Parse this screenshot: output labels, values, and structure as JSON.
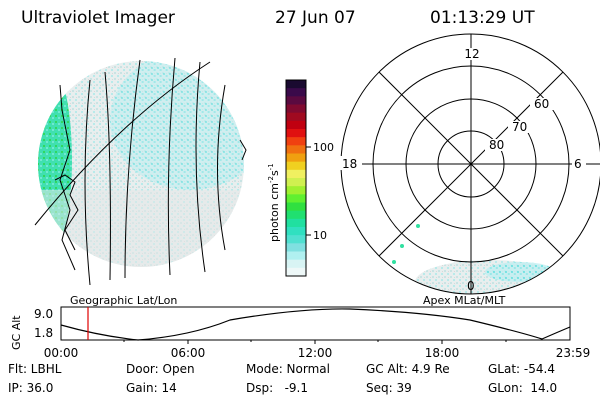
{
  "header": {
    "instrument": "Ultraviolet Imager",
    "date": "27 Jun 07",
    "time": "01:13:29 UT"
  },
  "colorbar": {
    "label": "photon cm",
    "label_exp1": "-2",
    "label_s": "s",
    "label_exp2": "-1",
    "ticks": [
      "100",
      "10"
    ],
    "colors": [
      "#1a0a30",
      "#3a0a4a",
      "#5a0a40",
      "#800a30",
      "#a00a20",
      "#c00010",
      "#e01010",
      "#f04010",
      "#f07010",
      "#f0a010",
      "#f0d020",
      "#f0f060",
      "#d0f050",
      "#a0f030",
      "#60f030",
      "#30e040",
      "#20e070",
      "#20e0a0",
      "#30e0c0",
      "#50e0d0",
      "#80e0e0",
      "#b0f0f0",
      "#d8f4f4",
      "#eef8f8"
    ]
  },
  "panels": {
    "left_label": "Geographic Lat/Lon",
    "right_label": "Apex MLat/MLT"
  },
  "polar": {
    "lat_labels": [
      "60",
      "70",
      "80"
    ],
    "mlt_labels": [
      "12",
      "18",
      "6",
      "0"
    ]
  },
  "altitude_plot": {
    "ylabel": "GC Alt",
    "y_ticks": [
      "9.0",
      "1.8"
    ],
    "x_ticks": [
      "00:00",
      "06:00",
      "12:00",
      "18:00",
      "23:59"
    ]
  },
  "info": {
    "filter": "Flt: LBHL",
    "door": "Door: Open",
    "mode": "Mode: Normal",
    "gc_alt": "GC Alt: 4.9 Re",
    "glat": "GLat: -54.4",
    "ip": "IP: 36.0",
    "gain": "Gain: 14",
    "dsp": "Dsp:   -9.1",
    "seq": "Seq: 39",
    "glon": "GLon:  14.0"
  },
  "colors": {
    "foreground": "#000000",
    "background": "#ffffff",
    "marker": "#e00000"
  }
}
